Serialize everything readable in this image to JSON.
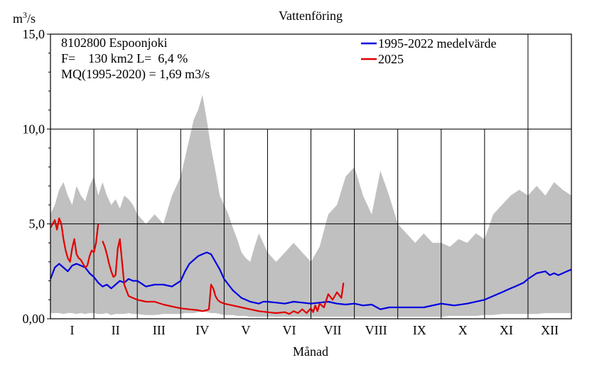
{
  "chart_data": {
    "type": "area",
    "title": "Vattenföring",
    "ylabel": "m3/s",
    "ylabel_base": "m",
    "ylabel_exp": "3",
    "ylabel_suffix": "/s",
    "xlabel": "Månad",
    "ylim": [
      0,
      15
    ],
    "yticks": [
      "0,00",
      "5,0",
      "10,0",
      "15,0"
    ],
    "ytick_values": [
      0,
      5,
      10,
      15
    ],
    "categories": [
      "I",
      "II",
      "III",
      "IV",
      "V",
      "VI",
      "VII",
      "VIII",
      "IX",
      "X",
      "XI",
      "XII"
    ],
    "info": [
      "8102800 Espoonjoki",
      "F=    130 km2 L=  6,4 %",
      "MQ(1995-2020) = 1,69 m3/s"
    ],
    "legend_position": "top-right",
    "grid": true,
    "colors": {
      "band": "#c0c0c0",
      "mean": "#0000e0",
      "current": "#e00000"
    },
    "series": [
      {
        "name": "1995-2022 medelvärde",
        "x": [
          0,
          0.05,
          0.1,
          0.15,
          0.2,
          0.3,
          0.4,
          0.5,
          0.6,
          0.7,
          0.8,
          0.9,
          1.0,
          1.1,
          1.2,
          1.3,
          1.4,
          1.5,
          1.6,
          1.7,
          1.8,
          1.9,
          2.0,
          2.2,
          2.4,
          2.6,
          2.8,
          3.0,
          3.1,
          3.2,
          3.3,
          3.4,
          3.5,
          3.6,
          3.7,
          3.8,
          3.9,
          4.0,
          4.1,
          4.2,
          4.3,
          4.4,
          4.5,
          4.6,
          4.7,
          4.8,
          4.9,
          5.0,
          5.2,
          5.4,
          5.6,
          5.8,
          6.0,
          6.2,
          6.4,
          6.6,
          6.8,
          7.0,
          7.2,
          7.4,
          7.6,
          7.8,
          8.0,
          8.3,
          8.6,
          9.0,
          9.3,
          9.6,
          10.0,
          10.2,
          10.4,
          10.5,
          10.6,
          10.7,
          10.8,
          10.9,
          11.0,
          11.2,
          11.4,
          11.5,
          11.6,
          11.7,
          11.8,
          11.9,
          12.0
        ],
        "values": [
          2.1,
          2.4,
          2.7,
          2.8,
          2.9,
          2.7,
          2.5,
          2.8,
          2.9,
          2.8,
          2.7,
          2.4,
          2.2,
          1.9,
          1.7,
          1.8,
          1.6,
          1.8,
          2.0,
          1.9,
          2.1,
          2.0,
          2.0,
          1.7,
          1.8,
          1.8,
          1.7,
          2.0,
          2.5,
          2.9,
          3.1,
          3.3,
          3.4,
          3.5,
          3.4,
          3.0,
          2.6,
          2.1,
          1.8,
          1.5,
          1.3,
          1.1,
          1.0,
          0.9,
          0.85,
          0.8,
          0.9,
          0.9,
          0.85,
          0.8,
          0.9,
          0.85,
          0.8,
          0.85,
          0.9,
          0.8,
          0.75,
          0.8,
          0.7,
          0.75,
          0.5,
          0.6,
          0.6,
          0.6,
          0.6,
          0.8,
          0.7,
          0.8,
          1.0,
          1.2,
          1.4,
          1.5,
          1.6,
          1.7,
          1.8,
          1.9,
          2.1,
          2.4,
          2.5,
          2.3,
          2.4,
          2.3,
          2.4,
          2.5,
          2.6
        ]
      },
      {
        "name": "2025",
        "x": [
          0,
          0.05,
          0.1,
          0.15,
          0.2,
          0.25,
          0.3,
          0.35,
          0.4,
          0.45,
          0.5,
          0.55,
          0.6,
          0.65,
          0.7,
          0.75,
          0.8,
          0.85,
          0.9,
          0.95,
          1.0,
          1.05,
          1.1,
          1.15,
          1.2,
          1.25,
          1.3,
          1.35,
          1.4,
          1.45,
          1.5,
          1.55,
          1.6,
          1.7,
          1.8,
          1.9,
          2.0,
          2.2,
          2.4,
          2.6,
          2.8,
          3.0,
          3.2,
          3.4,
          3.5,
          3.6,
          3.65,
          3.7,
          3.75,
          3.8,
          3.85,
          3.9,
          4.0,
          4.2,
          4.4,
          4.6,
          4.8,
          5.0,
          5.2,
          5.4,
          5.5,
          5.6,
          5.7,
          5.8,
          5.9,
          6.0,
          6.05,
          6.1,
          6.15,
          6.2,
          6.3,
          6.4,
          6.5,
          6.55,
          6.6,
          6.7,
          6.75
        ],
        "values": [
          4.8,
          5.0,
          5.2,
          4.7,
          5.3,
          5.0,
          4.2,
          3.6,
          3.2,
          3.0,
          3.7,
          4.2,
          3.4,
          3.2,
          3.1,
          2.9,
          2.7,
          2.8,
          3.3,
          3.6,
          3.5,
          4.0,
          5.0,
          null,
          4.1,
          3.8,
          3.4,
          2.9,
          2.5,
          2.2,
          2.3,
          3.7,
          4.2,
          1.8,
          1.2,
          1.1,
          1.0,
          0.9,
          0.9,
          0.75,
          0.65,
          0.55,
          0.5,
          0.45,
          0.4,
          0.45,
          0.5,
          1.8,
          1.6,
          1.2,
          1.0,
          0.9,
          0.8,
          0.7,
          0.6,
          0.5,
          0.4,
          0.35,
          0.3,
          0.35,
          0.25,
          0.4,
          0.3,
          0.5,
          0.3,
          0.55,
          0.35,
          0.7,
          0.4,
          0.8,
          0.6,
          1.3,
          1.0,
          1.2,
          1.4,
          1.1,
          1.9
        ]
      }
    ],
    "band": {
      "x": [
        0,
        0.1,
        0.2,
        0.3,
        0.4,
        0.5,
        0.6,
        0.7,
        0.8,
        0.9,
        1.0,
        1.1,
        1.2,
        1.3,
        1.4,
        1.5,
        1.6,
        1.7,
        1.8,
        1.9,
        2.0,
        2.2,
        2.4,
        2.6,
        2.8,
        3.0,
        3.1,
        3.2,
        3.3,
        3.4,
        3.5,
        3.6,
        3.7,
        3.8,
        3.9,
        4.0,
        4.1,
        4.2,
        4.3,
        4.4,
        4.5,
        4.6,
        4.7,
        4.8,
        4.9,
        5.0,
        5.2,
        5.4,
        5.6,
        5.8,
        6.0,
        6.2,
        6.4,
        6.6,
        6.8,
        7.0,
        7.2,
        7.4,
        7.6,
        7.8,
        8.0,
        8.2,
        8.4,
        8.6,
        8.8,
        9.0,
        9.2,
        9.4,
        9.6,
        9.8,
        10.0,
        10.2,
        10.4,
        10.6,
        10.8,
        11.0,
        11.2,
        11.4,
        11.6,
        11.8,
        12.0
      ],
      "max": [
        5.5,
        6.0,
        6.8,
        7.2,
        6.5,
        6.0,
        7.0,
        6.5,
        6.2,
        7.0,
        7.5,
        6.5,
        7.2,
        6.5,
        6.0,
        6.3,
        5.8,
        6.5,
        6.3,
        6.0,
        5.5,
        5.0,
        5.5,
        5.0,
        6.5,
        7.5,
        8.5,
        9.5,
        10.5,
        11.0,
        11.8,
        10.5,
        9.0,
        7.8,
        6.5,
        6.0,
        5.5,
        4.8,
        4.2,
        3.5,
        3.2,
        3.0,
        3.8,
        4.5,
        4.0,
        3.5,
        3.0,
        3.5,
        4.0,
        3.5,
        3.0,
        3.8,
        5.5,
        6.0,
        7.5,
        8.0,
        6.5,
        5.5,
        7.8,
        6.5,
        5.0,
        4.5,
        4.0,
        4.5,
        4.0,
        4.0,
        3.8,
        4.2,
        4.0,
        4.5,
        4.2,
        5.5,
        6.0,
        6.5,
        6.8,
        6.5,
        7.0,
        6.5,
        7.2,
        6.8,
        6.5
      ],
      "min": [
        0.3,
        0.3,
        0.3,
        0.25,
        0.3,
        0.3,
        0.25,
        0.3,
        0.25,
        0.3,
        0.3,
        0.25,
        0.25,
        0.3,
        0.2,
        0.25,
        0.25,
        0.25,
        0.3,
        0.25,
        0.25,
        0.2,
        0.2,
        0.25,
        0.25,
        0.25,
        0.3,
        0.3,
        0.3,
        0.35,
        0.4,
        0.35,
        0.3,
        0.3,
        0.25,
        0.2,
        0.2,
        0.2,
        0.15,
        0.15,
        0.15,
        0.1,
        0.1,
        0.1,
        0.1,
        0.1,
        0.1,
        0.1,
        0.1,
        0.1,
        0.1,
        0.1,
        0.1,
        0.1,
        0.1,
        0.1,
        0.1,
        0.1,
        0.1,
        0.1,
        0.1,
        0.1,
        0.1,
        0.1,
        0.1,
        0.1,
        0.15,
        0.15,
        0.15,
        0.15,
        0.2,
        0.2,
        0.25,
        0.25,
        0.25,
        0.25,
        0.25,
        0.3,
        0.3,
        0.3,
        0.3
      ]
    }
  }
}
